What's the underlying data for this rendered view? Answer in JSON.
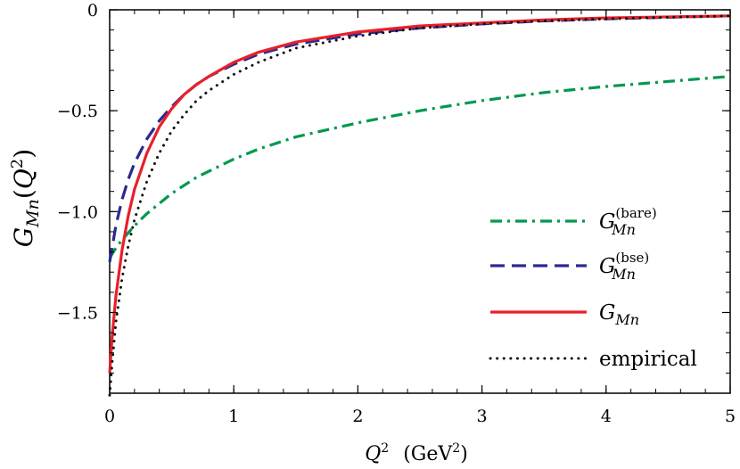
{
  "chart_data": {
    "type": "line",
    "xlabel": {
      "var": "Q",
      "sup": "2",
      "unit_open": "(GeV",
      "unit_sup": "2",
      "unit_close": ")"
    },
    "ylabel": {
      "main": "G",
      "sub": "Mn",
      "open": "(",
      "arg": "Q",
      "sup": "2",
      "close": ")"
    },
    "xlim": [
      0,
      5
    ],
    "ylim": [
      -1.9,
      0
    ],
    "x_ticks": [
      "0",
      "1",
      "2",
      "3",
      "4",
      "5"
    ],
    "y_ticks": [
      "0",
      "−0.5",
      "−1.0",
      "−1.5"
    ],
    "legend_position": "right",
    "series": [
      {
        "label_main": "G",
        "label_sub": "Mn",
        "label_sup": "(bare)",
        "color": "#00994d",
        "dash": "dashdot",
        "x": [
          0,
          0.05,
          0.1,
          0.2,
          0.3,
          0.4,
          0.5,
          0.6,
          0.7,
          0.8,
          0.9,
          1.0,
          1.2,
          1.5,
          2.0,
          2.5,
          3.0,
          3.5,
          4.0,
          4.5,
          5.0
        ],
        "y": [
          -1.23,
          -1.18,
          -1.14,
          -1.07,
          -1.01,
          -0.96,
          -0.91,
          -0.87,
          -0.83,
          -0.8,
          -0.77,
          -0.74,
          -0.69,
          -0.63,
          -0.56,
          -0.5,
          -0.45,
          -0.41,
          -0.38,
          -0.355,
          -0.33
        ]
      },
      {
        "label_main": "G",
        "label_sub": "Mn",
        "label_sup": "(bse)",
        "color": "#2a2a8f",
        "dash": "dashed",
        "x": [
          0,
          0.05,
          0.1,
          0.15,
          0.2,
          0.3,
          0.4,
          0.5,
          0.6,
          0.7,
          0.8,
          1.0,
          1.2,
          1.5,
          2.0,
          2.5,
          3.0,
          3.5,
          4.0,
          4.5,
          5.0
        ],
        "y": [
          -1.25,
          -1.07,
          -0.94,
          -0.84,
          -0.76,
          -0.64,
          -0.55,
          -0.48,
          -0.42,
          -0.37,
          -0.33,
          -0.27,
          -0.22,
          -0.17,
          -0.12,
          -0.09,
          -0.07,
          -0.055,
          -0.045,
          -0.037,
          -0.03
        ]
      },
      {
        "label_main": "G",
        "label_sub": "Mn",
        "label_sup": "",
        "color": "#e8202a",
        "dash": "solid",
        "x": [
          0,
          0.02,
          0.05,
          0.1,
          0.15,
          0.2,
          0.3,
          0.4,
          0.5,
          0.6,
          0.7,
          0.8,
          1.0,
          1.2,
          1.5,
          2.0,
          2.5,
          3.0,
          3.5,
          4.0,
          4.5,
          5.0
        ],
        "y": [
          -1.8,
          -1.62,
          -1.42,
          -1.19,
          -1.02,
          -0.89,
          -0.71,
          -0.58,
          -0.49,
          -0.42,
          -0.37,
          -0.33,
          -0.26,
          -0.21,
          -0.16,
          -0.11,
          -0.08,
          -0.065,
          -0.05,
          -0.04,
          -0.035,
          -0.03
        ]
      },
      {
        "label_main": "empirical",
        "label_sub": "",
        "label_sup": "",
        "color": "#111111",
        "dash": "dotted",
        "x": [
          0,
          0.02,
          0.05,
          0.1,
          0.15,
          0.2,
          0.3,
          0.4,
          0.5,
          0.6,
          0.7,
          0.8,
          1.0,
          1.2,
          1.5,
          2.0,
          2.5,
          3.0,
          3.5,
          4.0,
          4.5,
          5.0
        ],
        "y": [
          -1.91,
          -1.75,
          -1.55,
          -1.33,
          -1.17,
          -1.04,
          -0.85,
          -0.71,
          -0.6,
          -0.52,
          -0.45,
          -0.4,
          -0.32,
          -0.26,
          -0.19,
          -0.13,
          -0.09,
          -0.07,
          -0.055,
          -0.045,
          -0.037,
          -0.03
        ]
      }
    ]
  }
}
